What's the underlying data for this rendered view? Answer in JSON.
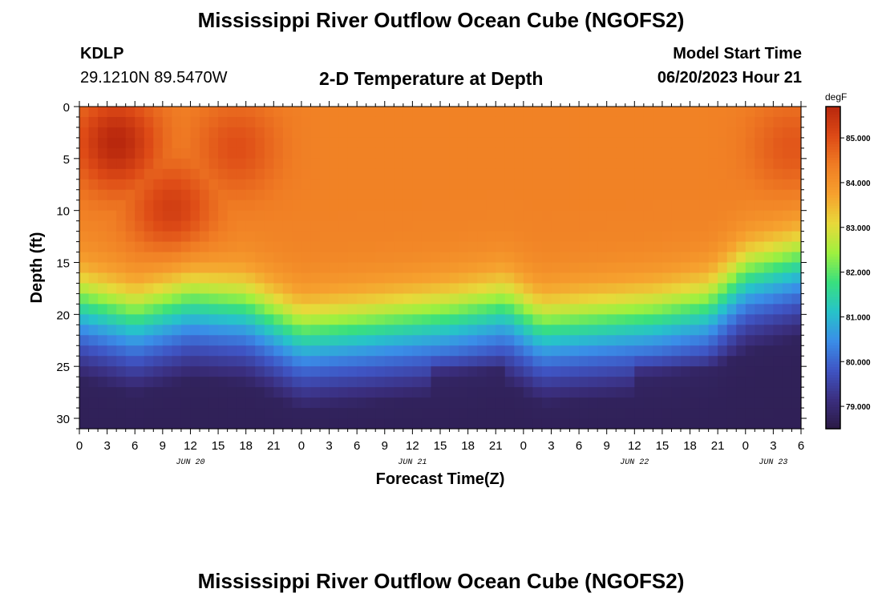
{
  "page": {
    "title": "Mississippi River Outflow Ocean Cube (NGOFS2)",
    "station_id": "KDLP",
    "station_coords": "29.1210N  89.5470W",
    "subtitle": "2-D Temperature at Depth",
    "model_start_label": "Model Start Time",
    "model_start_value": "06/20/2023 Hour 21",
    "footer_title": "Mississippi River Outflow Ocean Cube (NGOFS2)"
  },
  "chart_data": {
    "type": "heatmap",
    "title": "2-D Temperature at Depth",
    "xlabel": "Forecast Time(Z)",
    "ylabel": "Depth (ft)",
    "x_range_hours": [
      0,
      78
    ],
    "ylim": [
      0,
      31
    ],
    "y_inverted": true,
    "x_ticks": [
      "0",
      "3",
      "6",
      "9",
      "12",
      "15",
      "18",
      "21",
      "0",
      "3",
      "6",
      "9",
      "12",
      "15",
      "18",
      "21",
      "0",
      "3",
      "6",
      "9",
      "12",
      "15",
      "18",
      "21",
      "0",
      "3",
      "6"
    ],
    "y_ticks": [
      0,
      5,
      10,
      15,
      20,
      25,
      30
    ],
    "date_labels": [
      {
        "label": "JUN 20",
        "hour": 12
      },
      {
        "label": "JUN 21",
        "hour": 36
      },
      {
        "label": "JUN 22",
        "hour": 60
      },
      {
        "label": "JUN 23",
        "hour": 75
      }
    ],
    "colorbar": {
      "unit": "degF",
      "min": 78.5,
      "max": 85.7,
      "ticks": [
        "79.000",
        "80.000",
        "81.000",
        "82.000",
        "83.000",
        "84.000",
        "85.000"
      ],
      "colors": [
        "#2b1a45",
        "#3b2f80",
        "#3f55c4",
        "#3a8ee8",
        "#27c3c9",
        "#39e07e",
        "#9ff03f",
        "#e8d93a",
        "#f6a12e",
        "#f07d24",
        "#dd4a16",
        "#b8270d"
      ]
    },
    "surface_temp_hotspots": [
      {
        "hour": 4,
        "depth": 3.5,
        "temp": 85.7
      },
      {
        "hour": 10,
        "depth": 10,
        "temp": 85.3
      },
      {
        "hour": 17,
        "depth": 4,
        "temp": 85.0
      },
      {
        "hour": 77,
        "depth": 4,
        "temp": 84.9
      }
    ],
    "thermocline_depth_ft": [
      {
        "hour": 0,
        "depth": 17.5
      },
      {
        "hour": 6,
        "depth": 19.0
      },
      {
        "hour": 12,
        "depth": 17.5
      },
      {
        "hour": 18,
        "depth": 18.0
      },
      {
        "hour": 24,
        "depth": 20.5
      },
      {
        "hour": 30,
        "depth": 20.0
      },
      {
        "hour": 40,
        "depth": 19.0
      },
      {
        "hour": 46,
        "depth": 18.0
      },
      {
        "hour": 50,
        "depth": 20.0
      },
      {
        "hour": 56,
        "depth": 19.5
      },
      {
        "hour": 62,
        "depth": 19.0
      },
      {
        "hour": 68,
        "depth": 18.0
      },
      {
        "hour": 72,
        "depth": 15.0
      },
      {
        "hour": 78,
        "depth": 13.5
      }
    ]
  }
}
